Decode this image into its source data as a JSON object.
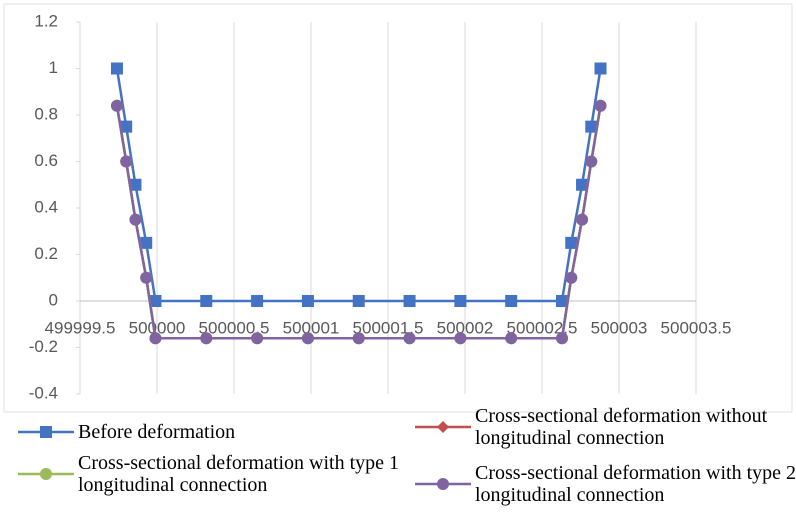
{
  "chart_data": {
    "type": "line",
    "x": [
      499999.74,
      499999.8,
      499999.86,
      499999.93,
      499999.99,
      500000.32,
      500000.65,
      500000.98,
      500001.31,
      500001.64,
      500001.97,
      500002.3,
      500002.63,
      500002.69,
      500002.76,
      500002.82,
      500002.88
    ],
    "series": [
      {
        "name": "Before deformation",
        "color": "#4472c4",
        "marker": "square",
        "values": [
          1,
          0.75,
          0.5,
          0.25,
          0,
          0,
          0,
          0,
          0,
          0,
          0,
          0,
          0,
          0.25,
          0.5,
          0.75,
          1
        ]
      },
      {
        "name": "Cross-sectional deformation without longitudinal connection",
        "color": "#c0504d",
        "marker": "diamond",
        "values": [
          0.84,
          0.6,
          0.35,
          0.1,
          -0.16,
          -0.16,
          -0.16,
          -0.16,
          -0.16,
          -0.16,
          -0.16,
          -0.16,
          -0.16,
          0.1,
          0.35,
          0.6,
          0.84
        ]
      },
      {
        "name": "Cross-sectional deformation with type 1 longitudinal connection",
        "color": "#9bbb59",
        "marker": "circle",
        "values": [
          0.84,
          0.6,
          0.35,
          0.1,
          -0.16,
          -0.16,
          -0.16,
          -0.16,
          -0.16,
          -0.16,
          -0.16,
          -0.16,
          -0.16,
          0.1,
          0.35,
          0.6,
          0.84
        ]
      },
      {
        "name": "Cross-sectional deformation with type 2 longitudinal connection",
        "color": "#8064a2",
        "marker": "circle",
        "values": [
          0.84,
          0.6,
          0.35,
          0.1,
          -0.16,
          -0.16,
          -0.16,
          -0.16,
          -0.16,
          -0.16,
          -0.16,
          -0.16,
          -0.16,
          0.1,
          0.35,
          0.6,
          0.84
        ]
      }
    ],
    "xlim": [
      499999.5,
      500003.5
    ],
    "xticks": [
      499999.5,
      500000,
      500000.5,
      500001,
      500001.5,
      500002,
      500002.5,
      500003,
      500003.5
    ],
    "ylim": [
      -0.4,
      1.2
    ],
    "yticks": [
      -0.4,
      -0.2,
      0,
      0.2,
      0.4,
      0.6,
      0.8,
      1,
      1.2
    ],
    "grid": "x",
    "legend": "bottom"
  }
}
